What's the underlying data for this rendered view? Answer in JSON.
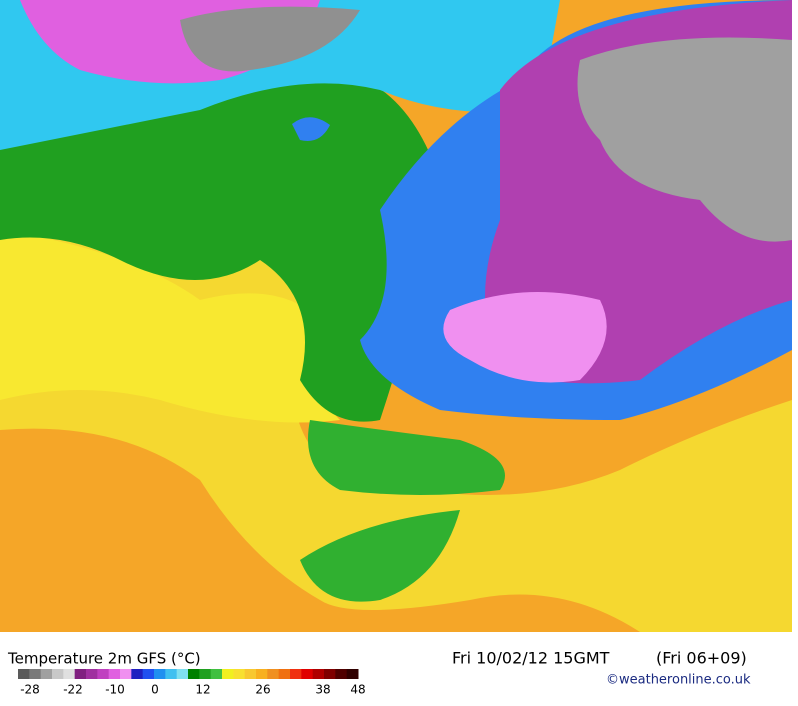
{
  "title": "Temperature 2m GFS (°C)",
  "valid_time": "Fri 10/02/12 15GMT",
  "run": "(Fri 06+09)",
  "credit": "©weatheronline.co.uk",
  "legend": {
    "ticks": [
      -28,
      -22,
      -10,
      0,
      12,
      26,
      38,
      48
    ],
    "colors": [
      "#5a5a5a",
      "#7a7a7a",
      "#a0a0a0",
      "#c8c8c8",
      "#e0e0e0",
      "#802080",
      "#a030a0",
      "#c040c0",
      "#e060e0",
      "#f090f0",
      "#2020c0",
      "#2050f0",
      "#2090f0",
      "#40c0f0",
      "#80e0f0",
      "#008000",
      "#20a020",
      "#40c040",
      "#f0f020",
      "#f8e030",
      "#f8c830",
      "#f8b020",
      "#f09020",
      "#f07010",
      "#f03010",
      "#e00000",
      "#b00000",
      "#800000",
      "#500000",
      "#300000"
    ]
  }
}
